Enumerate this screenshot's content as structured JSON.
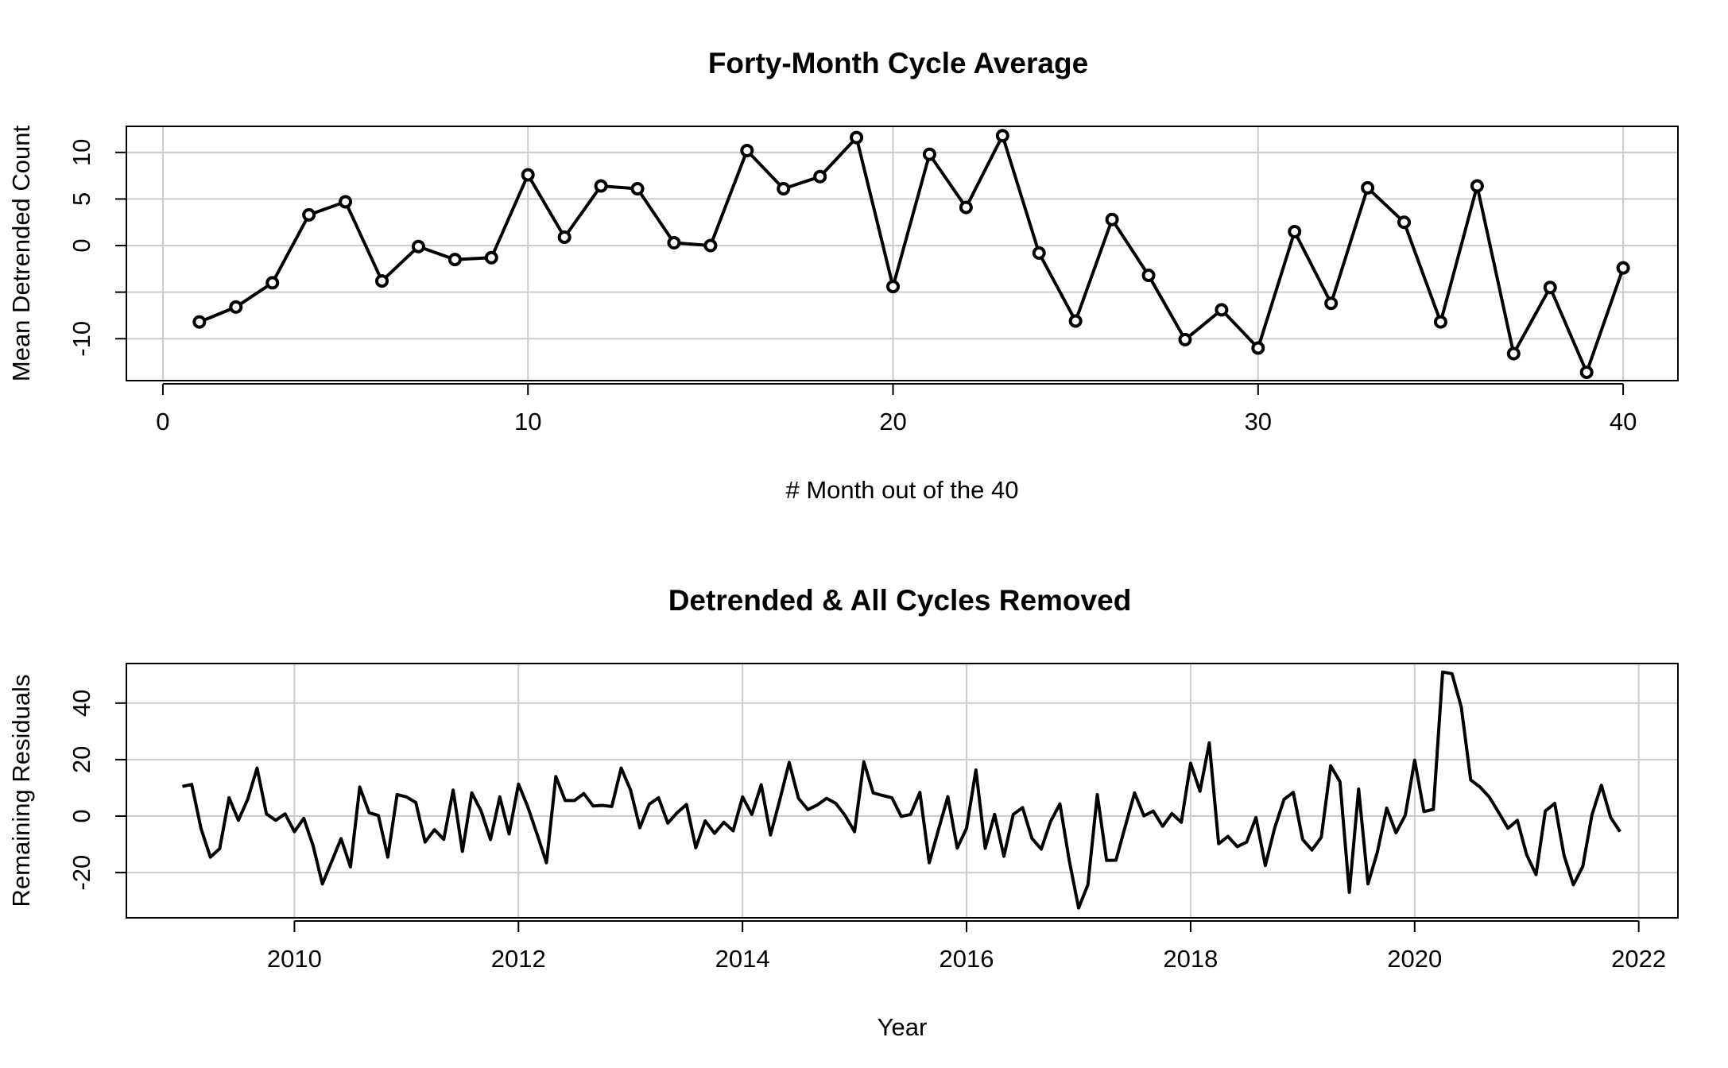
{
  "chart_data": [
    {
      "type": "line",
      "title": "Forty-Month Cycle Average",
      "xlabel": "# Month out of the 40",
      "ylabel": "Mean Detrended Count",
      "xlim": [
        -1,
        41.5
      ],
      "ylim": [
        -14.5,
        12.8
      ],
      "xticks": [
        0,
        10,
        20,
        30,
        40
      ],
      "yticks": [
        -10,
        -5,
        0,
        5,
        10
      ],
      "ytick_labels": [
        "-10",
        "",
        "0",
        "5",
        "10"
      ],
      "grid": true,
      "markers": "open-circle",
      "x": [
        1,
        2,
        3,
        4,
        5,
        6,
        7,
        8,
        9,
        10,
        11,
        12,
        13,
        14,
        15,
        16,
        17,
        18,
        19,
        20,
        21,
        22,
        23,
        24,
        25,
        26,
        27,
        28,
        29,
        30,
        31,
        32,
        33,
        34,
        35,
        36,
        37,
        38,
        39,
        40
      ],
      "series": [
        {
          "values": [
            -8.2,
            -6.6,
            -4.0,
            3.3,
            4.7,
            -3.8,
            -0.1,
            -1.5,
            -1.3,
            7.6,
            0.9,
            6.4,
            6.1,
            0.3,
            0.0,
            10.2,
            6.1,
            7.4,
            11.6,
            -4.4,
            9.8,
            4.1,
            11.8,
            -0.8,
            -8.1,
            2.8,
            -3.2,
            -10.1,
            -6.9,
            -11.0,
            1.5,
            -6.2,
            6.2,
            2.5,
            -8.2,
            6.4,
            -11.6,
            -4.5,
            -13.6,
            -2.4
          ]
        }
      ]
    },
    {
      "type": "line",
      "title": "Detrended & All Cycles Removed",
      "xlabel": "Year",
      "ylabel": "Remaining Residuals",
      "xlim": [
        2008.5,
        2022.35
      ],
      "ylim": [
        -36,
        54
      ],
      "xticks": [
        2010,
        2012,
        2014,
        2016,
        2018,
        2020,
        2022
      ],
      "yticks": [
        -20,
        0,
        20,
        40
      ],
      "grid": true,
      "x_start": 2009.0,
      "x_step": 0.08333333,
      "series": [
        {
          "values": [
            10.5,
            11.2,
            -4.5,
            -14.5,
            -11.5,
            6.5,
            -1.5,
            6.0,
            17.0,
            0.8,
            -1.5,
            0.8,
            -5.5,
            -0.8,
            -10.5,
            -24.0,
            -16.0,
            -8.0,
            -18.0,
            10.3,
            1.2,
            0.2,
            -14.5,
            7.6,
            6.8,
            4.8,
            -9.2,
            -4.8,
            -8.2,
            9.2,
            -12.5,
            8.2,
            1.8,
            -8.3,
            6.8,
            -6.3,
            11.3,
            3.3,
            -6.5,
            -16.5,
            14.0,
            5.5,
            5.5,
            8.0,
            3.6,
            3.8,
            3.4,
            17.0,
            9.3,
            -4.1,
            4.2,
            6.5,
            -2.5,
            1.2,
            4.1,
            -11.2,
            -1.7,
            -6.1,
            -2.2,
            -5.2,
            6.8,
            0.6,
            11.1,
            -6.7,
            5.8,
            19.0,
            6.3,
            2.3,
            3.9,
            6.3,
            4.5,
            0.1,
            -5.5,
            19.2,
            8.2,
            7.3,
            6.5,
            -0.1,
            0.6,
            8.4,
            -16.5,
            -4.7,
            6.9,
            -11.3,
            -4.3,
            16.3,
            -11.4,
            0.6,
            -14.2,
            0.6,
            3.0,
            -7.9,
            -11.7,
            -1.9,
            4.3,
            -15.7,
            -32.5,
            -24.3,
            7.6,
            -15.7,
            -15.6,
            -3.6,
            8.2,
            0.1,
            1.8,
            -3.6,
            0.9,
            -2.2,
            18.7,
            8.8,
            25.9,
            -9.8,
            -7.2,
            -10.8,
            -9.2,
            -0.5,
            -17.5,
            -4.3,
            5.9,
            8.4,
            -8.3,
            -12.0,
            -7.5,
            17.8,
            12.2,
            -27.0,
            9.6,
            -24.0,
            -12.8,
            2.8,
            -5.9,
            0.3,
            19.8,
            1.6,
            2.4,
            51.0,
            50.4,
            38.5,
            12.8,
            10.3,
            6.7,
            1.3,
            -4.3,
            -1.5,
            -13.7,
            -20.7,
            1.8,
            4.5,
            -13.9,
            -24.3,
            -17.9,
            0.5,
            10.9,
            -0.5,
            -5.5
          ]
        }
      ]
    }
  ]
}
